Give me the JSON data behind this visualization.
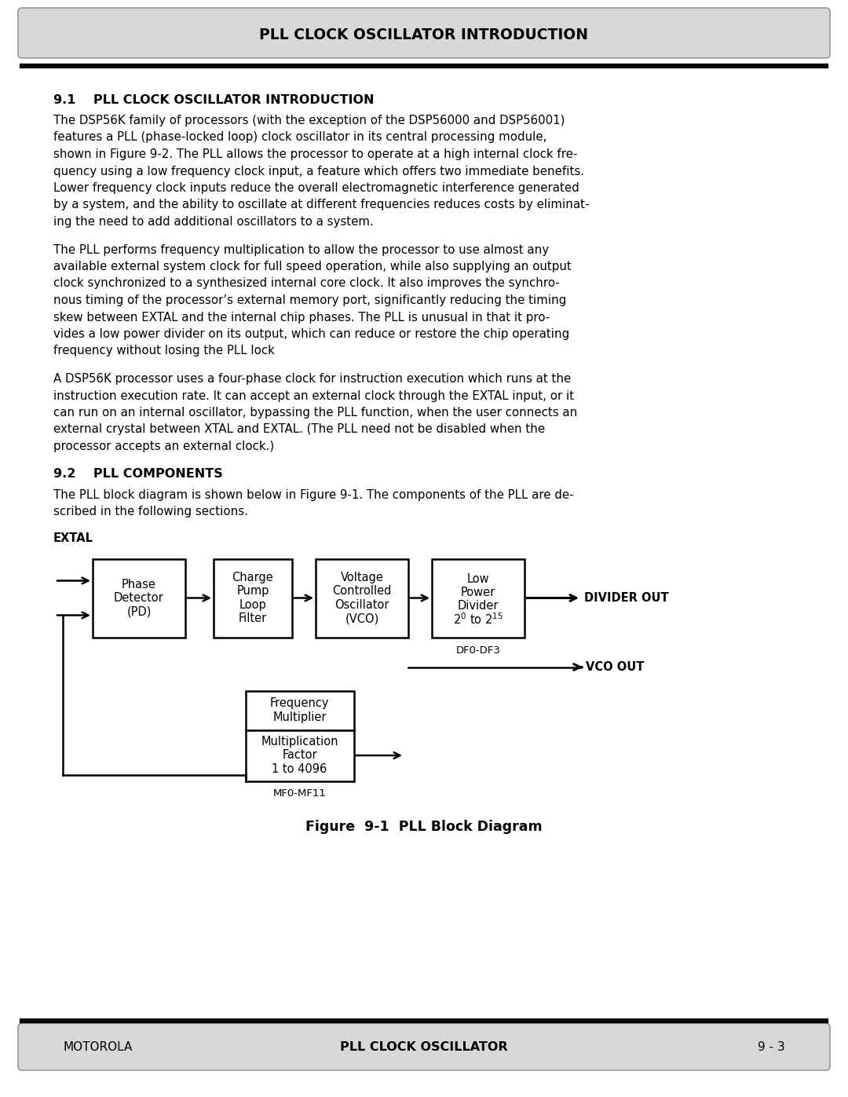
{
  "page_bg": "#ffffff",
  "header_bg": "#d8d8d8",
  "footer_bg": "#d8d8d8",
  "header_text": "PLL CLOCK OSCILLATOR INTRODUCTION",
  "footer_left": "MOTOROLA",
  "footer_center": "PLL CLOCK OSCILLATOR",
  "footer_right": "9 - 3",
  "section_91_title": "9.1    PLL CLOCK OSCILLATOR INTRODUCTION",
  "section_92_title": "9.2    PLL COMPONENTS",
  "figure_caption": "Figure  9-1  PLL Block Diagram",
  "para1_lines": [
    "The DSP56K family of processors (with the exception of the DSP56000 and DSP56001)",
    "features a PLL (phase-locked loop) clock oscillator in its central processing module,",
    "shown in Figure 9-2. The PLL allows the processor to operate at a high internal clock fre-",
    "quency using a low frequency clock input, a feature which offers two immediate benefits.",
    "Lower frequency clock inputs reduce the overall electromagnetic interference generated",
    "by a system, and the ability to oscillate at different frequencies reduces costs by eliminat-",
    "ing the need to add additional oscillators to a system."
  ],
  "para2_lines": [
    "The PLL performs frequency multiplication to allow the processor to use almost any",
    "available external system clock for full speed operation, while also supplying an output",
    "clock synchronized to a synthesized internal core clock. It also improves the synchro-",
    "nous timing of the processor’s external memory port, significantly reducing the timing",
    "skew between EXTAL and the internal chip phases. The PLL is unusual in that it pro-",
    "vides a low power divider on its output, which can reduce or restore the chip operating",
    "frequency without losing the PLL lock"
  ],
  "para3_lines": [
    "A DSP56K processor uses a four-phase clock for instruction execution which runs at the",
    "instruction execution rate. It can accept an external clock through the EXTAL input, or it",
    "can run on an internal oscillator, bypassing the PLL function, when the user connects an",
    "external crystal between XTAL and EXTAL. (The PLL need not be disabled when the",
    "processor accepts an external clock.)"
  ],
  "para4_lines": [
    "The PLL block diagram is shown below in Figure 9-1. The components of the PLL are de-",
    "scribed in the following sections."
  ]
}
